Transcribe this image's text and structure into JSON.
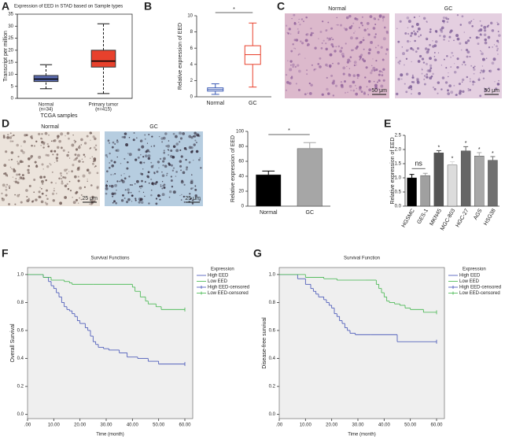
{
  "chart_data": [
    {
      "type": "box",
      "label": "A",
      "title": "Expression of EED in STAD based on Sample types",
      "y_label": "Transcript per million",
      "x_label": "TCGA samples",
      "categories": [
        "Normal",
        "Primary tumor"
      ],
      "category_counts": [
        "(n=34)",
        "(n=415)"
      ],
      "boxes": [
        {
          "min": 4,
          "q1": 7,
          "median": 8,
          "q3": 9.5,
          "max": 14,
          "color": "#5a6bb0"
        },
        {
          "min": 2,
          "q1": 13,
          "median": 15.5,
          "q3": 20,
          "max": 31,
          "color": "#e8412c"
        }
      ],
      "filled": true,
      "ylim": [
        0,
        35
      ],
      "yticks": [
        0,
        5,
        10,
        15,
        20,
        25,
        30,
        35
      ]
    },
    {
      "type": "box",
      "label": "B",
      "y_label": "Relative expression of EED",
      "categories": [
        "Normal",
        "GC"
      ],
      "boxes": [
        {
          "min": 0.3,
          "q1": 0.7,
          "median": 0.9,
          "q3": 1.1,
          "max": 1.6,
          "color": "#3c5bb5"
        },
        {
          "min": 1.2,
          "q1": 4,
          "median": 5.2,
          "q3": 6.3,
          "max": 9.1,
          "color": "#e8412c"
        }
      ],
      "filled": false,
      "annotation": "*",
      "ylim": [
        0,
        10
      ],
      "yticks": [
        0,
        2,
        4,
        6,
        8,
        10
      ]
    },
    {
      "type": "image",
      "label": "C",
      "panels": [
        {
          "title": "Normal",
          "scale": "50 μm"
        },
        {
          "title": "GC",
          "scale": "50 μm"
        }
      ]
    },
    {
      "type": "image",
      "label": "D",
      "panels": [
        {
          "title": "Normal",
          "scale": "25 μm"
        },
        {
          "title": "GC",
          "scale": "25 μm"
        }
      ]
    },
    {
      "type": "bar",
      "y_label": "Relative expression of EED",
      "categories": [
        "Normal",
        "GC"
      ],
      "values": [
        42,
        77
      ],
      "errors": [
        5,
        8
      ],
      "colors": [
        "#000000",
        "#a6a6a6"
      ],
      "annotation": "*",
      "ylim": [
        0,
        100
      ],
      "yticks": [
        0,
        20,
        40,
        60,
        80,
        100
      ]
    },
    {
      "type": "bar",
      "label": "E",
      "y_label": "Relative expression of EED",
      "categories": [
        "HGSMC",
        "GES-1",
        "MKN45",
        "MGC-803",
        "HGC-27",
        "AGS",
        "HSG38"
      ],
      "values": [
        1.0,
        1.08,
        1.88,
        1.45,
        1.95,
        1.77,
        1.62
      ],
      "errors": [
        0.12,
        0.08,
        0.08,
        0.12,
        0.15,
        0.12,
        0.13
      ],
      "colors": [
        "#000000",
        "#a0a0a0",
        "#555555",
        "#dcdcdc",
        "#666666",
        "#a8a8a8",
        "#707070"
      ],
      "bracket_label": "ns",
      "marks": [
        null,
        null,
        "*",
        "*",
        "*",
        "*",
        "*"
      ],
      "ylim": [
        0,
        2.5
      ],
      "yticks": [
        {
          "value": 0,
          "label": "0.0"
        },
        0.5,
        {
          "value": 1,
          "label": "1.0"
        },
        1.5,
        {
          "value": 2,
          "label": "2.0"
        },
        2.5
      ]
    },
    {
      "type": "survival",
      "label": "F",
      "title": "Survival Functions",
      "y_label": "Overall Survival",
      "x_label": "Time (month)",
      "legend_title": "Expression",
      "legend": [
        "High EED",
        "Low EED",
        "High EED-censored",
        "Low EED-censored"
      ],
      "series": [
        {
          "name": "High EED",
          "color": "#3f4fb5",
          "x": [
            0,
            6,
            8,
            9,
            10,
            11,
            12,
            13,
            14,
            15,
            16,
            17,
            18,
            19,
            20,
            22,
            23,
            24,
            25,
            26,
            27,
            29,
            31,
            35,
            38,
            42,
            46,
            50,
            60
          ],
          "values": [
            1.0,
            0.98,
            0.95,
            0.92,
            0.9,
            0.87,
            0.84,
            0.8,
            0.77,
            0.75,
            0.74,
            0.72,
            0.7,
            0.67,
            0.65,
            0.62,
            0.6,
            0.56,
            0.52,
            0.5,
            0.48,
            0.47,
            0.46,
            0.44,
            0.41,
            0.4,
            0.38,
            0.36,
            0.36
          ]
        },
        {
          "name": "Low EED",
          "color": "#3fb54a",
          "x": [
            0,
            6,
            9,
            14,
            16,
            17,
            25,
            40,
            41,
            43,
            45,
            46,
            49,
            51,
            60
          ],
          "values": [
            1.0,
            0.98,
            0.96,
            0.95,
            0.94,
            0.93,
            0.93,
            0.91,
            0.88,
            0.84,
            0.81,
            0.79,
            0.77,
            0.75,
            0.75
          ]
        }
      ],
      "xlim": [
        0,
        63
      ],
      "xticks": [
        {
          "value": 0,
          "label": ".00"
        },
        {
          "value": 10,
          "label": "10.00"
        },
        {
          "value": 20,
          "label": "20.00"
        },
        {
          "value": 30,
          "label": "30.00"
        },
        {
          "value": 40,
          "label": "40.00"
        },
        {
          "value": 50,
          "label": "50.00"
        },
        {
          "value": 60,
          "label": "60.00"
        }
      ],
      "ylim": [
        -0.03,
        1.05
      ],
      "yticks": [
        {
          "value": 0,
          "label": "0.0"
        },
        0.2,
        0.4,
        0.6,
        0.8,
        {
          "value": 1,
          "label": "1.0"
        }
      ]
    },
    {
      "type": "survival",
      "label": "G",
      "title": "Survival Function",
      "y_label": "Disease-free survival",
      "x_label": "Time (month)",
      "legend_title": "Expression",
      "legend": [
        "High EED",
        "Low EED",
        "High EED-censored",
        "Low EED-censored"
      ],
      "series": [
        {
          "name": "High EED",
          "color": "#3f4fb5",
          "x": [
            0,
            7,
            10,
            12,
            13,
            14,
            15,
            17,
            18,
            19,
            20,
            21,
            22,
            23,
            24,
            25,
            26,
            27,
            29,
            35,
            45,
            60
          ],
          "values": [
            1.0,
            0.97,
            0.93,
            0.9,
            0.88,
            0.86,
            0.84,
            0.82,
            0.8,
            0.78,
            0.76,
            0.72,
            0.7,
            0.67,
            0.65,
            0.62,
            0.6,
            0.58,
            0.57,
            0.57,
            0.52,
            0.52
          ]
        },
        {
          "name": "Low EED",
          "color": "#3fb54a",
          "x": [
            0,
            10,
            17,
            22,
            33,
            37,
            38,
            39,
            40,
            41,
            42,
            44,
            46,
            48,
            50,
            55,
            60
          ],
          "values": [
            1.0,
            0.98,
            0.97,
            0.96,
            0.96,
            0.93,
            0.9,
            0.87,
            0.84,
            0.81,
            0.8,
            0.79,
            0.78,
            0.76,
            0.75,
            0.73,
            0.73
          ]
        }
      ],
      "xlim": [
        0,
        63
      ],
      "xticks": [
        {
          "value": 0,
          "label": ".00"
        },
        {
          "value": 10,
          "label": "10.00"
        },
        {
          "value": 20,
          "label": "20.00"
        },
        {
          "value": 30,
          "label": "30.00"
        },
        {
          "value": 40,
          "label": "40.00"
        },
        {
          "value": 50,
          "label": "50.00"
        },
        {
          "value": 60,
          "label": "60.00"
        }
      ],
      "ylim": [
        -0.03,
        1.05
      ],
      "yticks": [
        {
          "value": 0,
          "label": "0.0"
        },
        0.2,
        0.4,
        0.6,
        0.8,
        {
          "value": 1,
          "label": "1.0"
        }
      ]
    }
  ]
}
